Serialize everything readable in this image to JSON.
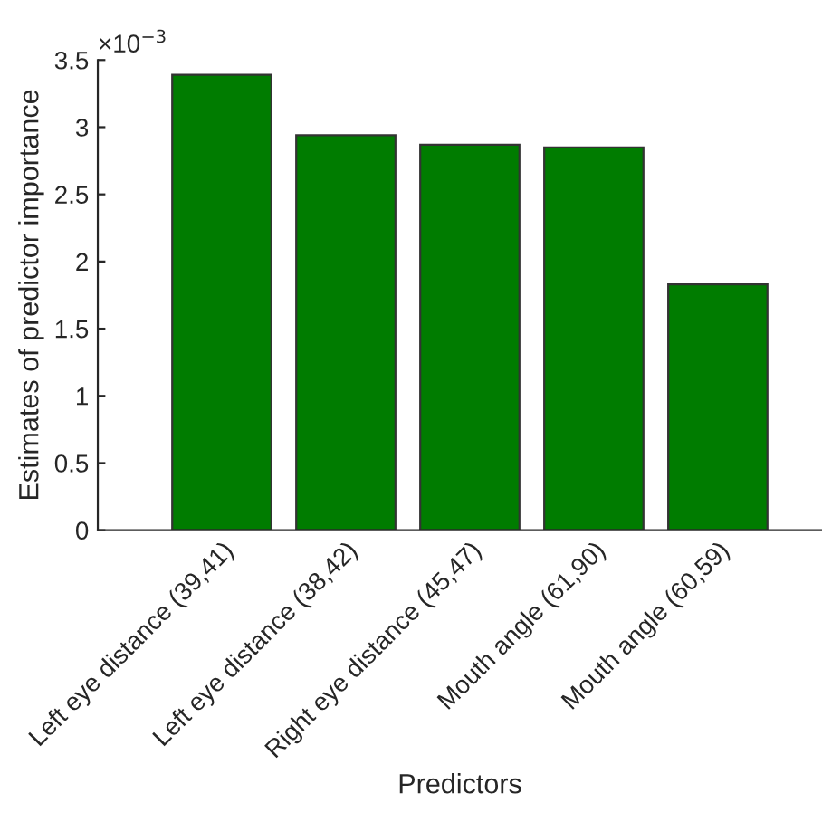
{
  "chart_data": {
    "type": "bar",
    "xlabel": "Predictors",
    "ylabel": "Estimates of predictor importance",
    "categories": [
      "Left eye distance (39,41)",
      "Left eye distance (38,42)",
      "Right eye distance (45,47)",
      "Mouth angle (61,90)",
      "Mouth angle (60,59)"
    ],
    "values": [
      3.39,
      2.94,
      2.87,
      2.85,
      1.83
    ],
    "color": "#007c00",
    "ylim": [
      0,
      3.5
    ],
    "yticks": [
      0,
      0.5,
      1,
      1.5,
      2,
      2.5,
      3,
      3.5
    ],
    "annotations": [
      "×10$^{−3}$"
    ],
    "grid": false,
    "legend": false
  }
}
